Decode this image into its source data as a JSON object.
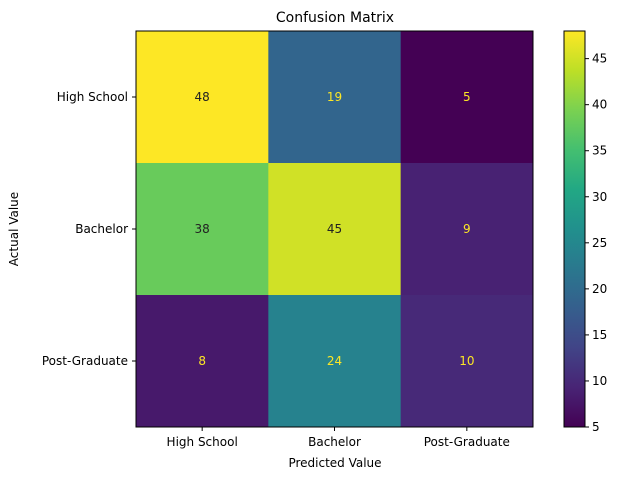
{
  "chart_data": {
    "type": "heatmap",
    "title": "Confusion Matrix",
    "xlabel": "Predicted Value",
    "ylabel": "Actual Value",
    "x_categories": [
      "High School",
      "Bachelor",
      "Post-Graduate"
    ],
    "y_categories": [
      "High School",
      "Bachelor",
      "Post-Graduate"
    ],
    "values": [
      [
        48,
        19,
        5
      ],
      [
        38,
        45,
        9
      ],
      [
        8,
        24,
        10
      ]
    ],
    "colormap": "viridis",
    "colorbar": {
      "range": [
        5,
        48
      ],
      "ticks": [
        5,
        10,
        15,
        20,
        25,
        30,
        35,
        40,
        45
      ]
    },
    "annotation_colors": {
      "light_cells": "#222222",
      "dark_cells": "#fde725"
    }
  }
}
